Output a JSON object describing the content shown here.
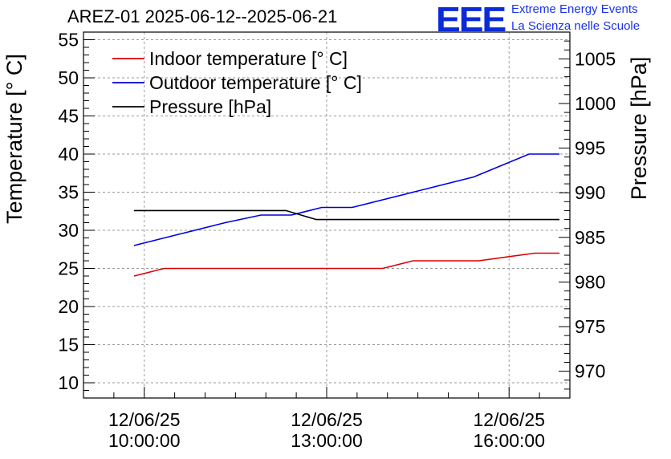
{
  "header": {
    "title": "AREZ-01 2025-06-12--2025-06-21",
    "logo_text": "EEE",
    "logo_line1": "Extreme Energy Events",
    "logo_line2": "La Scienza nelle Scuole"
  },
  "colors": {
    "indoor": "#dd0000",
    "outdoor": "#0000dd",
    "pressure": "#000000",
    "logo": "#0b2bd8"
  },
  "chart_data": {
    "type": "line",
    "ylabel": "Temperature [° C]",
    "y2label": "Pressure [hPa]",
    "xlabel": "",
    "grid": true,
    "legend_position": "top-left",
    "x_ticks": [
      {
        "date": "12/06/25",
        "time": "10:00:00",
        "hour": 10
      },
      {
        "date": "12/06/25",
        "time": "13:00:00",
        "hour": 13
      },
      {
        "date": "12/06/25",
        "time": "16:00:00",
        "hour": 16
      }
    ],
    "xlim": [
      9.0,
      17.0
    ],
    "ylim": [
      8,
      56
    ],
    "y_ticks": [
      10,
      15,
      20,
      25,
      30,
      35,
      40,
      45,
      50,
      55
    ],
    "y2lim": [
      967,
      1008
    ],
    "y2_ticks": [
      970,
      975,
      980,
      985,
      990,
      995,
      1000,
      1005
    ],
    "series": [
      {
        "name": "Indoor temperature [° C]",
        "axis": "left",
        "x": [
          9.83,
          10.33,
          11.33,
          12.33,
          13.33,
          13.92,
          14.42,
          15.5,
          16.42,
          16.83
        ],
        "y": [
          24,
          25,
          25,
          25,
          25,
          25,
          26,
          26,
          27,
          27
        ]
      },
      {
        "name": "Outdoor temperature [° C]",
        "axis": "left",
        "x": [
          9.83,
          10.33,
          11.33,
          11.92,
          12.42,
          12.92,
          13.42,
          14.42,
          15.42,
          16.33,
          16.83
        ],
        "y": [
          28,
          29,
          31,
          32,
          32,
          33,
          33,
          35,
          37,
          40,
          40
        ]
      },
      {
        "name": "Pressure [hPa]",
        "axis": "right",
        "x": [
          9.83,
          12.33,
          12.83,
          13.33,
          16.83
        ],
        "y": [
          988,
          988,
          987,
          987,
          987
        ]
      }
    ]
  }
}
